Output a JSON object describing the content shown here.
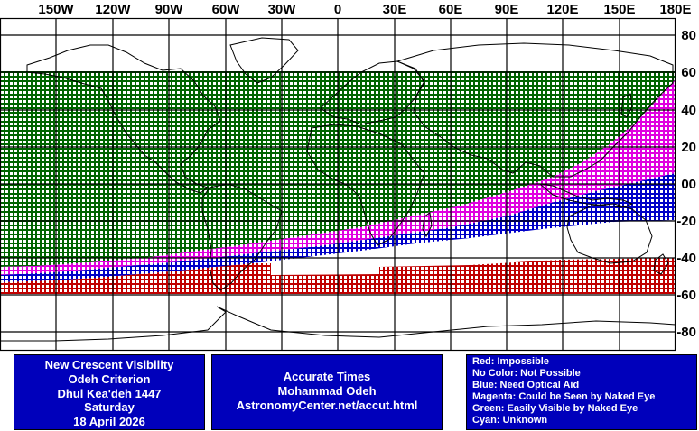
{
  "map": {
    "lon_labels": [
      "150W",
      "120W",
      "90W",
      "60W",
      "30W",
      "0",
      "30E",
      "60E",
      "90E",
      "120E",
      "150E",
      "180E"
    ],
    "lat_labels": [
      "80",
      "60",
      "40",
      "20",
      "00",
      "-20",
      "-40",
      "-60",
      "-80"
    ],
    "colors": {
      "green": "#006400",
      "magenta": "#e000e0",
      "blue": "#0000c8",
      "red": "#c00000",
      "coast": "#000000"
    }
  },
  "title_panel": {
    "line1": "New Crescent Visibility",
    "line2": "Odeh Criterion",
    "line3": "Dhul Kea'deh 1447",
    "line4": "Saturday",
    "line5": "18 April 2026"
  },
  "credit_panel": {
    "line1": "Accurate Times",
    "line2": "Mohammad Odeh",
    "line3": "AstronomyCenter.net/accut.html"
  },
  "legend": {
    "red": "Red: Impossible",
    "none": "No Color: Not Possible",
    "blue": "Blue: Need Optical Aid",
    "magenta": "Magenta: Could be Seen by Naked Eye",
    "green": "Green: Easily Visible by Naked Eye",
    "cyan": "Cyan: Unknown"
  }
}
